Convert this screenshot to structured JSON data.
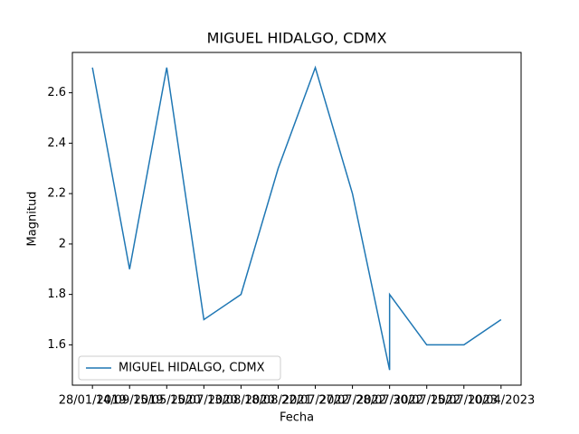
{
  "chart_data": {
    "type": "line",
    "title": "MIGUEL HIDALGO, CDMX",
    "xlabel": "Fecha",
    "ylabel": "Magnitud",
    "categories": [
      "28/01/2019",
      "14/09/2019",
      "15/05/2020",
      "15/07/2020",
      "13/08/2020",
      "18/08/2021",
      "22/07/2022",
      "27/07/2022",
      "28/07/2022",
      "28/07/2022",
      "30/07/2022",
      "15/07/2023",
      "10/04/2023"
    ],
    "series": [
      {
        "name": "MIGUEL HIDALGO, CDMX",
        "color": "#1f77b4",
        "values": [
          2.7,
          1.9,
          2.7,
          1.7,
          1.8,
          2.3,
          2.7,
          2.2,
          1.5,
          1.8,
          1.6,
          1.6,
          1.7
        ]
      }
    ],
    "ylim": [
      1.44,
      2.76
    ],
    "yticks": [
      1.6,
      1.8,
      2.0,
      2.2,
      2.4,
      2.6
    ],
    "legend": "lower left"
  }
}
